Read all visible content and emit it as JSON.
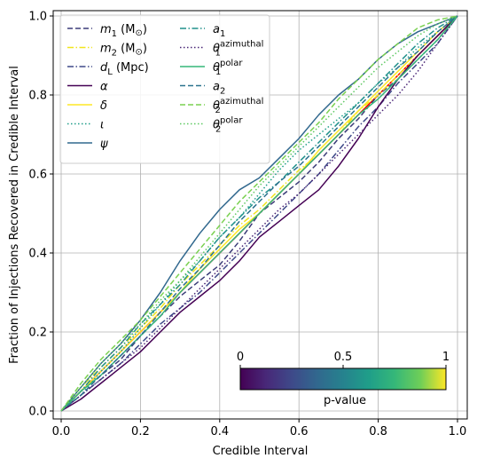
{
  "chart_data": {
    "type": "line",
    "xlabel": "Credible Interval",
    "ylabel": "Fraction of Injections Recovered in Credible Interval",
    "xlim": [
      0,
      1
    ],
    "ylim": [
      0,
      1
    ],
    "xticks": [
      "0.0",
      "0.2",
      "0.4",
      "0.6",
      "0.8",
      "1.0"
    ],
    "yticks": [
      "0.0",
      "0.2",
      "0.4",
      "0.6",
      "0.8",
      "1.0"
    ],
    "grid": true,
    "legend_position": "upper-left",
    "legend_columns": 2,
    "diagonal": {
      "color": "#ff0000",
      "x": [
        0,
        1
      ],
      "y": [
        0,
        1
      ]
    },
    "colorbar": {
      "label": "p-value",
      "ticks": [
        "0",
        "0.5",
        "1"
      ],
      "colormap": "viridis",
      "placement": "lower-right"
    },
    "series": [
      {
        "name_main": "m",
        "name_sub": "1",
        "name_suffix": " (M",
        "name_sun": "⊙",
        "name_close": ")",
        "style": "dashed",
        "color": "#3b3c78",
        "x": [
          0,
          0.05,
          0.1,
          0.15,
          0.2,
          0.25,
          0.3,
          0.35,
          0.4,
          0.45,
          0.5,
          0.55,
          0.6,
          0.65,
          0.7,
          0.75,
          0.8,
          0.85,
          0.9,
          0.95,
          1.0
        ],
        "y": [
          0,
          0.05,
          0.09,
          0.13,
          0.19,
          0.24,
          0.29,
          0.33,
          0.37,
          0.43,
          0.5,
          0.54,
          0.58,
          0.63,
          0.69,
          0.74,
          0.8,
          0.84,
          0.89,
          0.94,
          1.0
        ]
      },
      {
        "name_main": "m",
        "name_sub": "2",
        "name_suffix": " (M",
        "name_sun": "⊙",
        "name_close": ")",
        "style": "dashdot",
        "color": "#f1e51d",
        "x": [
          0,
          0.05,
          0.1,
          0.15,
          0.2,
          0.25,
          0.3,
          0.35,
          0.4,
          0.45,
          0.5,
          0.55,
          0.6,
          0.65,
          0.7,
          0.75,
          0.8,
          0.85,
          0.9,
          0.95,
          1.0
        ],
        "y": [
          0,
          0.06,
          0.11,
          0.16,
          0.21,
          0.26,
          0.32,
          0.37,
          0.42,
          0.47,
          0.51,
          0.56,
          0.61,
          0.65,
          0.7,
          0.76,
          0.8,
          0.85,
          0.9,
          0.95,
          1.0
        ]
      },
      {
        "name_main": "d",
        "name_sub": "L",
        "name_suffix": " (Mpc)",
        "name_sun": "",
        "name_close": "",
        "style": "dashdot",
        "color": "#3e4989",
        "x": [
          0,
          0.05,
          0.1,
          0.15,
          0.2,
          0.25,
          0.3,
          0.35,
          0.4,
          0.45,
          0.5,
          0.55,
          0.6,
          0.65,
          0.7,
          0.75,
          0.8,
          0.85,
          0.9,
          0.95,
          1.0
        ],
        "y": [
          0,
          0.04,
          0.08,
          0.12,
          0.17,
          0.22,
          0.26,
          0.3,
          0.35,
          0.4,
          0.45,
          0.5,
          0.55,
          0.6,
          0.66,
          0.72,
          0.77,
          0.83,
          0.88,
          0.93,
          1.0
        ]
      },
      {
        "name_main": "α",
        "name_sub": "",
        "name_suffix": "",
        "name_sun": "",
        "name_close": "",
        "style": "solid",
        "color": "#440154",
        "x": [
          0,
          0.05,
          0.1,
          0.15,
          0.2,
          0.25,
          0.3,
          0.35,
          0.4,
          0.45,
          0.5,
          0.55,
          0.6,
          0.65,
          0.7,
          0.75,
          0.8,
          0.85,
          0.9,
          0.95,
          1.0
        ],
        "y": [
          0,
          0.03,
          0.07,
          0.11,
          0.15,
          0.2,
          0.25,
          0.29,
          0.33,
          0.38,
          0.44,
          0.48,
          0.52,
          0.56,
          0.62,
          0.69,
          0.77,
          0.84,
          0.9,
          0.95,
          1.0
        ]
      },
      {
        "name_main": "δ",
        "name_sub": "",
        "name_suffix": "",
        "name_sun": "",
        "name_close": "",
        "style": "solid",
        "color": "#fde725",
        "x": [
          0,
          0.05,
          0.1,
          0.15,
          0.2,
          0.25,
          0.3,
          0.35,
          0.4,
          0.45,
          0.5,
          0.55,
          0.6,
          0.65,
          0.7,
          0.75,
          0.8,
          0.85,
          0.9,
          0.95,
          1.0
        ],
        "y": [
          0,
          0.05,
          0.1,
          0.15,
          0.2,
          0.25,
          0.3,
          0.36,
          0.41,
          0.46,
          0.5,
          0.55,
          0.6,
          0.66,
          0.71,
          0.76,
          0.81,
          0.86,
          0.91,
          0.96,
          1.0
        ]
      },
      {
        "name_main": "ι",
        "name_sub": "",
        "name_suffix": "",
        "name_sun": "",
        "name_close": "",
        "style": "dotted",
        "color": "#1f9e89",
        "x": [
          0,
          0.05,
          0.1,
          0.15,
          0.2,
          0.25,
          0.3,
          0.35,
          0.4,
          0.45,
          0.5,
          0.55,
          0.6,
          0.65,
          0.7,
          0.75,
          0.8,
          0.85,
          0.9,
          0.95,
          1.0
        ],
        "y": [
          0,
          0.04,
          0.1,
          0.15,
          0.21,
          0.27,
          0.33,
          0.38,
          0.44,
          0.49,
          0.55,
          0.61,
          0.66,
          0.7,
          0.74,
          0.78,
          0.83,
          0.87,
          0.92,
          0.96,
          1.0
        ]
      },
      {
        "name_main": "ψ",
        "name_sub": "",
        "name_suffix": "",
        "name_sun": "",
        "name_close": "",
        "style": "solid",
        "color": "#31688e",
        "x": [
          0,
          0.05,
          0.1,
          0.15,
          0.2,
          0.25,
          0.3,
          0.35,
          0.4,
          0.45,
          0.5,
          0.55,
          0.6,
          0.65,
          0.7,
          0.75,
          0.8,
          0.85,
          0.9,
          0.95,
          1.0
        ],
        "y": [
          0,
          0.06,
          0.12,
          0.17,
          0.23,
          0.3,
          0.38,
          0.45,
          0.51,
          0.56,
          0.59,
          0.64,
          0.69,
          0.75,
          0.8,
          0.84,
          0.89,
          0.93,
          0.96,
          0.98,
          1.0
        ]
      },
      {
        "name_main": "a",
        "name_sub": "1",
        "name_suffix": "",
        "name_sun": "",
        "name_close": "",
        "style": "dashdot",
        "color": "#21918c",
        "x": [
          0,
          0.05,
          0.1,
          0.15,
          0.2,
          0.25,
          0.3,
          0.35,
          0.4,
          0.45,
          0.5,
          0.55,
          0.6,
          0.65,
          0.7,
          0.75,
          0.8,
          0.85,
          0.9,
          0.95,
          1.0
        ],
        "y": [
          0,
          0.05,
          0.11,
          0.16,
          0.22,
          0.27,
          0.32,
          0.38,
          0.44,
          0.49,
          0.54,
          0.58,
          0.63,
          0.68,
          0.73,
          0.78,
          0.83,
          0.88,
          0.93,
          0.97,
          1.0
        ]
      },
      {
        "name_main": "θ",
        "name_sub": "1",
        "name_sup": "azimuthal",
        "name_suffix": "",
        "name_sun": "",
        "name_close": "",
        "style": "dotted",
        "color": "#482475",
        "x": [
          0,
          0.05,
          0.1,
          0.15,
          0.2,
          0.25,
          0.3,
          0.35,
          0.4,
          0.45,
          0.5,
          0.55,
          0.6,
          0.65,
          0.7,
          0.75,
          0.8,
          0.85,
          0.9,
          0.95,
          1.0
        ],
        "y": [
          0,
          0.04,
          0.08,
          0.12,
          0.16,
          0.21,
          0.26,
          0.31,
          0.36,
          0.41,
          0.46,
          0.51,
          0.55,
          0.6,
          0.65,
          0.7,
          0.75,
          0.8,
          0.86,
          0.93,
          1.0
        ]
      },
      {
        "name_main": "θ",
        "name_sub": "1",
        "name_sup": "polar",
        "name_suffix": "",
        "name_sun": "",
        "name_close": "",
        "style": "solid",
        "color": "#35b779",
        "x": [
          0,
          0.05,
          0.1,
          0.15,
          0.2,
          0.25,
          0.3,
          0.35,
          0.4,
          0.45,
          0.5,
          0.55,
          0.6,
          0.65,
          0.7,
          0.75,
          0.8,
          0.85,
          0.9,
          0.95,
          1.0
        ],
        "y": [
          0,
          0.05,
          0.09,
          0.14,
          0.19,
          0.24,
          0.3,
          0.35,
          0.4,
          0.45,
          0.5,
          0.55,
          0.6,
          0.65,
          0.7,
          0.75,
          0.79,
          0.84,
          0.89,
          0.94,
          1.0
        ]
      },
      {
        "name_main": "a",
        "name_sub": "2",
        "name_suffix": "",
        "name_sun": "",
        "name_close": "",
        "style": "dashed",
        "color": "#2c728e",
        "x": [
          0,
          0.05,
          0.1,
          0.15,
          0.2,
          0.25,
          0.3,
          0.35,
          0.4,
          0.45,
          0.5,
          0.55,
          0.6,
          0.65,
          0.7,
          0.75,
          0.8,
          0.85,
          0.9,
          0.95,
          1.0
        ],
        "y": [
          0,
          0.04,
          0.09,
          0.14,
          0.19,
          0.25,
          0.31,
          0.36,
          0.42,
          0.48,
          0.53,
          0.58,
          0.62,
          0.67,
          0.72,
          0.77,
          0.82,
          0.87,
          0.91,
          0.96,
          1.0
        ]
      },
      {
        "name_main": "θ",
        "name_sub": "2",
        "name_sup": "azimuthal",
        "name_suffix": "",
        "name_sun": "",
        "name_close": "",
        "style": "dashed",
        "color": "#7ad151",
        "x": [
          0,
          0.05,
          0.1,
          0.15,
          0.2,
          0.25,
          0.3,
          0.35,
          0.4,
          0.45,
          0.5,
          0.55,
          0.6,
          0.65,
          0.7,
          0.75,
          0.8,
          0.85,
          0.9,
          0.95,
          1.0
        ],
        "y": [
          0,
          0.07,
          0.13,
          0.18,
          0.23,
          0.29,
          0.35,
          0.41,
          0.47,
          0.53,
          0.58,
          0.63,
          0.68,
          0.73,
          0.79,
          0.84,
          0.89,
          0.93,
          0.97,
          0.99,
          1.0
        ]
      },
      {
        "name_main": "θ",
        "name_sub": "2",
        "name_sup": "polar",
        "name_suffix": "",
        "name_sun": "",
        "name_close": "",
        "style": "dotted",
        "color": "#5ec962",
        "x": [
          0,
          0.05,
          0.1,
          0.15,
          0.2,
          0.25,
          0.3,
          0.35,
          0.4,
          0.45,
          0.5,
          0.55,
          0.6,
          0.65,
          0.7,
          0.75,
          0.8,
          0.85,
          0.9,
          0.95,
          1.0
        ],
        "y": [
          0,
          0.06,
          0.12,
          0.17,
          0.22,
          0.28,
          0.33,
          0.39,
          0.45,
          0.51,
          0.57,
          0.62,
          0.67,
          0.72,
          0.77,
          0.82,
          0.87,
          0.91,
          0.95,
          0.98,
          1.0
        ]
      }
    ]
  }
}
